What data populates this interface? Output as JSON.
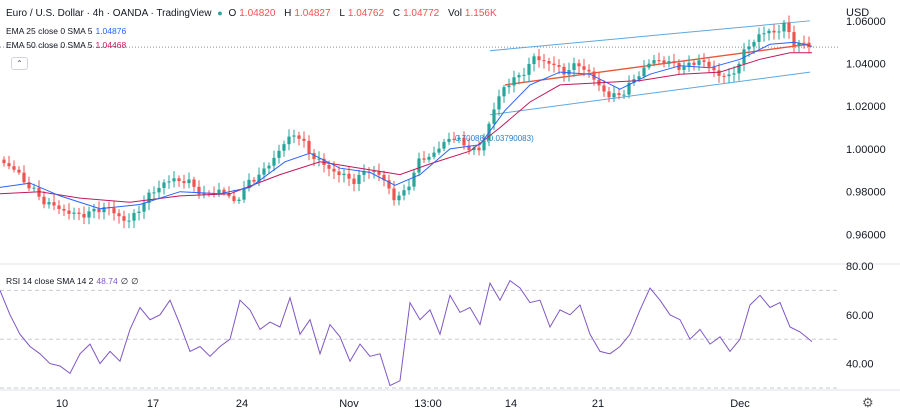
{
  "header": {
    "title": "Euro / U.S. Dollar · 4h · OANDA · TradingView",
    "ohlc": [
      {
        "label": "O",
        "value": "1.04820"
      },
      {
        "label": "H",
        "value": "1.04827"
      },
      {
        "label": "L",
        "value": "1.04762"
      },
      {
        "label": "C",
        "value": "1.04772"
      },
      {
        "label": "Vol",
        "value": "1.156K"
      }
    ],
    "currency": "USD"
  },
  "indicators": {
    "ema25": {
      "label": "EMA 25 close 0 SMA 5",
      "value": "1.04876",
      "color": "#2962ff"
    },
    "ema50": {
      "label": "EMA 50 close 0 SMA 5",
      "value": "1.04468",
      "color": "#c2185b"
    },
    "rsi": {
      "label": "RSI 14 close SMA 14 2",
      "value": "48.74",
      "extra1": "∅",
      "extra2": "∅",
      "color": "#7e57c2"
    }
  },
  "annotation": "0.70088 (0.03790083)",
  "colors": {
    "up": "#26a69a",
    "down": "#ef5350",
    "channel": "#5fa8e0",
    "regression": "#e8553a",
    "grid": "#c8cbd3"
  },
  "chart_data": [
    {
      "type": "candlestick",
      "title": "Euro / U.S. Dollar · 4h · OANDA · TradingView",
      "ylabel": "USD",
      "ylim": [
        0.948,
        1.066
      ],
      "y_ticks": [
        "1.06000",
        "1.04000",
        "1.02000",
        "1.00000",
        "0.98000",
        "0.96000"
      ],
      "x_ticks": [
        "10",
        "17",
        "24",
        "Nov",
        "13:00",
        "14",
        "21",
        "Dec"
      ],
      "price_path": [
        [
          0,
          0.995
        ],
        [
          15,
          0.99
        ],
        [
          30,
          0.982
        ],
        [
          45,
          0.975
        ],
        [
          60,
          0.972
        ],
        [
          75,
          0.969
        ],
        [
          90,
          0.97
        ],
        [
          105,
          0.973
        ],
        [
          120,
          0.968
        ],
        [
          130,
          0.966
        ],
        [
          145,
          0.976
        ],
        [
          160,
          0.983
        ],
        [
          175,
          0.986
        ],
        [
          190,
          0.984
        ],
        [
          205,
          0.978
        ],
        [
          220,
          0.981
        ],
        [
          235,
          0.975
        ],
        [
          250,
          0.985
        ],
        [
          265,
          0.99
        ],
        [
          280,
          1.0
        ],
        [
          295,
          1.008
        ],
        [
          310,
          0.998
        ],
        [
          325,
          0.992
        ],
        [
          340,
          0.988
        ],
        [
          355,
          0.985
        ],
        [
          370,
          0.991
        ],
        [
          385,
          0.985
        ],
        [
          395,
          0.976
        ],
        [
          405,
          0.98
        ],
        [
          420,
          0.995
        ],
        [
          435,
          0.998
        ],
        [
          450,
          1.006
        ],
        [
          465,
          1.002
        ],
        [
          478,
          0.998
        ],
        [
          485,
          1.006
        ],
        [
          495,
          1.02
        ],
        [
          505,
          1.03
        ],
        [
          520,
          1.034
        ],
        [
          535,
          1.043
        ],
        [
          550,
          1.04
        ],
        [
          565,
          1.036
        ],
        [
          580,
          1.04
        ],
        [
          595,
          1.032
        ],
        [
          610,
          1.024
        ],
        [
          625,
          1.027
        ],
        [
          640,
          1.036
        ],
        [
          655,
          1.042
        ],
        [
          670,
          1.04
        ],
        [
          685,
          1.038
        ],
        [
          700,
          1.042
        ],
        [
          715,
          1.036
        ],
        [
          730,
          1.033
        ],
        [
          745,
          1.046
        ],
        [
          760,
          1.054
        ],
        [
          775,
          1.055
        ],
        [
          785,
          1.058
        ],
        [
          795,
          1.049
        ],
        [
          805,
          1.049
        ],
        [
          812,
          1.048
        ]
      ],
      "ema25_path": [
        [
          0,
          0.982
        ],
        [
          30,
          0.984
        ],
        [
          60,
          0.978
        ],
        [
          100,
          0.972
        ],
        [
          140,
          0.974
        ],
        [
          180,
          0.98
        ],
        [
          220,
          0.979
        ],
        [
          250,
          0.982
        ],
        [
          285,
          0.994
        ],
        [
          310,
          0.998
        ],
        [
          340,
          0.991
        ],
        [
          370,
          0.989
        ],
        [
          395,
          0.983
        ],
        [
          420,
          0.988
        ],
        [
          450,
          1.0
        ],
        [
          480,
          1.002
        ],
        [
          505,
          1.018
        ],
        [
          530,
          1.03
        ],
        [
          560,
          1.036
        ],
        [
          590,
          1.035
        ],
        [
          620,
          1.028
        ],
        [
          650,
          1.035
        ],
        [
          680,
          1.039
        ],
        [
          710,
          1.038
        ],
        [
          740,
          1.042
        ],
        [
          770,
          1.049
        ],
        [
          795,
          1.05
        ],
        [
          812,
          1.048
        ]
      ],
      "ema50_path": [
        [
          0,
          0.979
        ],
        [
          40,
          0.98
        ],
        [
          80,
          0.977
        ],
        [
          130,
          0.975
        ],
        [
          180,
          0.978
        ],
        [
          230,
          0.979
        ],
        [
          280,
          0.988
        ],
        [
          320,
          0.994
        ],
        [
          360,
          0.991
        ],
        [
          400,
          0.988
        ],
        [
          430,
          0.993
        ],
        [
          470,
          0.999
        ],
        [
          500,
          1.01
        ],
        [
          530,
          1.022
        ],
        [
          560,
          1.03
        ],
        [
          600,
          1.031
        ],
        [
          640,
          1.032
        ],
        [
          680,
          1.035
        ],
        [
          720,
          1.036
        ],
        [
          760,
          1.042
        ],
        [
          790,
          1.045
        ],
        [
          812,
          1.045
        ]
      ],
      "channel_upper": [
        [
          490,
          1.046
        ],
        [
          810,
          1.06
        ]
      ],
      "channel_lower": [
        [
          490,
          1.016
        ],
        [
          810,
          1.036
        ]
      ],
      "regression_line": [
        [
          505,
          1.03
        ],
        [
          808,
          1.049
        ]
      ],
      "last_price_line": 1.0477
    },
    {
      "type": "line",
      "title": "RSI 14 close SMA 14 2",
      "ylim": [
        30,
        80
      ],
      "y_ticks": [
        "80.00",
        "60.00",
        "40.00"
      ],
      "bands": [
        70,
        50,
        30
      ],
      "rsi_path": [
        [
          0,
          70
        ],
        [
          10,
          60
        ],
        [
          20,
          52
        ],
        [
          30,
          47
        ],
        [
          40,
          44
        ],
        [
          50,
          40
        ],
        [
          60,
          39
        ],
        [
          70,
          36
        ],
        [
          80,
          44
        ],
        [
          90,
          48
        ],
        [
          100,
          40
        ],
        [
          110,
          45
        ],
        [
          120,
          41
        ],
        [
          130,
          54
        ],
        [
          140,
          63
        ],
        [
          150,
          58
        ],
        [
          160,
          60
        ],
        [
          170,
          66
        ],
        [
          180,
          56
        ],
        [
          190,
          45
        ],
        [
          200,
          47
        ],
        [
          210,
          43
        ],
        [
          220,
          47
        ],
        [
          230,
          50
        ],
        [
          240,
          66
        ],
        [
          250,
          62
        ],
        [
          260,
          54
        ],
        [
          270,
          57
        ],
        [
          280,
          55
        ],
        [
          290,
          67
        ],
        [
          300,
          52
        ],
        [
          310,
          58
        ],
        [
          320,
          44
        ],
        [
          330,
          56
        ],
        [
          340,
          51
        ],
        [
          350,
          41
        ],
        [
          360,
          48
        ],
        [
          370,
          43
        ],
        [
          380,
          44
        ],
        [
          390,
          31
        ],
        [
          400,
          33
        ],
        [
          410,
          65
        ],
        [
          420,
          58
        ],
        [
          430,
          62
        ],
        [
          440,
          52
        ],
        [
          450,
          68
        ],
        [
          460,
          61
        ],
        [
          470,
          63
        ],
        [
          480,
          56
        ],
        [
          490,
          73
        ],
        [
          500,
          66
        ],
        [
          510,
          74
        ],
        [
          520,
          71
        ],
        [
          530,
          65
        ],
        [
          540,
          66
        ],
        [
          550,
          55
        ],
        [
          560,
          62
        ],
        [
          570,
          60
        ],
        [
          580,
          64
        ],
        [
          590,
          52
        ],
        [
          600,
          45
        ],
        [
          610,
          44
        ],
        [
          620,
          47
        ],
        [
          630,
          52
        ],
        [
          640,
          62
        ],
        [
          650,
          71
        ],
        [
          660,
          66
        ],
        [
          670,
          60
        ],
        [
          680,
          58
        ],
        [
          690,
          50
        ],
        [
          700,
          54
        ],
        [
          710,
          48
        ],
        [
          720,
          51
        ],
        [
          730,
          45
        ],
        [
          740,
          50
        ],
        [
          750,
          64
        ],
        [
          760,
          68
        ],
        [
          770,
          63
        ],
        [
          780,
          65
        ],
        [
          790,
          55
        ],
        [
          800,
          53
        ],
        [
          812,
          49
        ]
      ]
    }
  ]
}
